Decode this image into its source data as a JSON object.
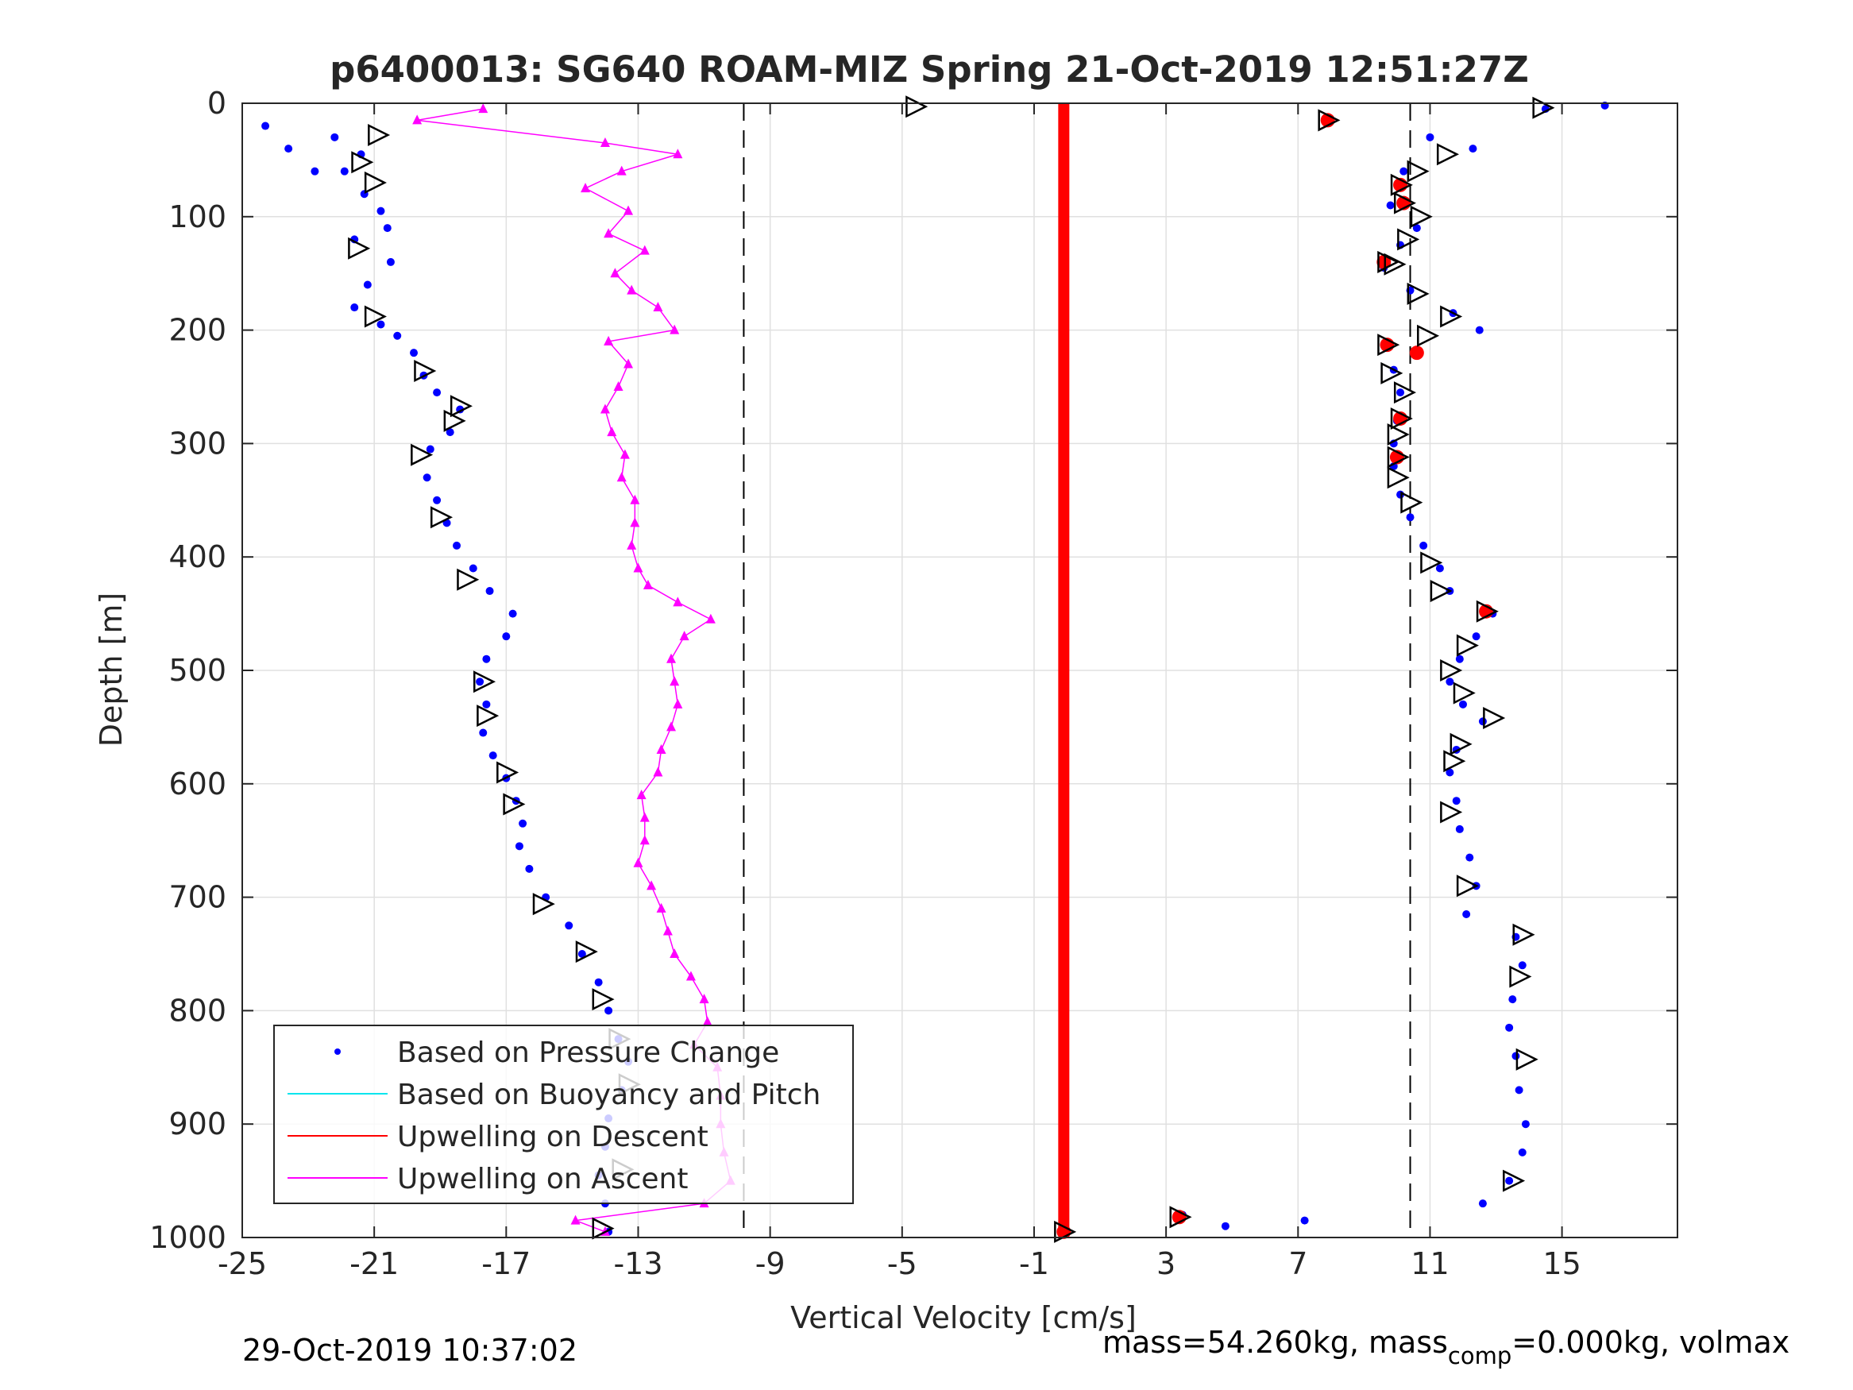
{
  "chart_data": {
    "type": "scatter",
    "title": "p6400013: SG640 ROAM-MIZ Spring 21-Oct-2019 12:51:27Z",
    "xlabel": "Vertical Velocity [cm/s]",
    "ylabel": "Depth [m]",
    "xlim": [
      -25,
      18.5
    ],
    "ylim": [
      1000,
      0
    ],
    "y_reversed": true,
    "xticks": [
      -25,
      -21,
      -17,
      -13,
      -9,
      -5,
      -1,
      3,
      7,
      11,
      15
    ],
    "xtick_labels": [
      "-25",
      "-21",
      "-17",
      "-13",
      "-9",
      "-5",
      "-1",
      "3",
      "7",
      "11",
      "15"
    ],
    "yticks": [
      0,
      100,
      200,
      300,
      400,
      500,
      600,
      700,
      800,
      900,
      1000
    ],
    "ytick_labels": [
      "0",
      "100",
      "200",
      "300",
      "400",
      "500",
      "600",
      "700",
      "800",
      "900",
      "1000"
    ],
    "grid": true,
    "legend_position": "bottom-left",
    "dashed_reference_lines_x": [
      -9.8,
      10.4
    ],
    "colors": {
      "pressure": "#0000ff",
      "buoyancy": "#00e5ee",
      "descent": "#ff0000",
      "ascent": "#ff00ff",
      "grid": "#e0e0e0",
      "axes": "#262626"
    },
    "legend": [
      {
        "label": "Based on Pressure Change",
        "style": "dot",
        "color": "#0000ff"
      },
      {
        "label": "Based on Buoyancy and Pitch",
        "style": "line",
        "color": "#00e5ee"
      },
      {
        "label": "Upwelling on Descent",
        "style": "line",
        "color": "#ff0000"
      },
      {
        "label": "Upwelling on Ascent",
        "style": "line",
        "color": "#ff00ff"
      }
    ],
    "series": [
      {
        "name": "Based on Pressure Change (dive)",
        "color": "#0000ff",
        "points": [
          [
            -24.3,
            20
          ],
          [
            -23.6,
            40
          ],
          [
            -22.8,
            60
          ],
          [
            -22.2,
            30
          ],
          [
            -21.4,
            45
          ],
          [
            -21.9,
            60
          ],
          [
            -21.3,
            80
          ],
          [
            -20.8,
            95
          ],
          [
            -20.6,
            110
          ],
          [
            -21.6,
            120
          ],
          [
            -20.5,
            140
          ],
          [
            -21.2,
            160
          ],
          [
            -21.6,
            180
          ],
          [
            -20.8,
            195
          ],
          [
            -20.3,
            205
          ],
          [
            -19.8,
            220
          ],
          [
            -19.5,
            240
          ],
          [
            -19.1,
            255
          ],
          [
            -18.4,
            270
          ],
          [
            -18.7,
            290
          ],
          [
            -19.3,
            305
          ],
          [
            -19.4,
            330
          ],
          [
            -19.1,
            350
          ],
          [
            -18.8,
            370
          ],
          [
            -18.5,
            390
          ],
          [
            -18.0,
            410
          ],
          [
            -17.5,
            430
          ],
          [
            -16.8,
            450
          ],
          [
            -17.0,
            470
          ],
          [
            -17.6,
            490
          ],
          [
            -17.8,
            510
          ],
          [
            -17.6,
            530
          ],
          [
            -17.7,
            555
          ],
          [
            -17.4,
            575
          ],
          [
            -17.0,
            595
          ],
          [
            -16.7,
            615
          ],
          [
            -16.5,
            635
          ],
          [
            -16.6,
            655
          ],
          [
            -16.3,
            675
          ],
          [
            -15.8,
            700
          ],
          [
            -15.1,
            725
          ],
          [
            -14.7,
            750
          ],
          [
            -14.2,
            775
          ],
          [
            -13.9,
            800
          ],
          [
            -13.6,
            825
          ],
          [
            -13.3,
            845
          ],
          [
            -13.5,
            870
          ],
          [
            -13.9,
            895
          ],
          [
            -14.0,
            920
          ],
          [
            -14.2,
            945
          ],
          [
            -14.0,
            970
          ],
          [
            -13.9,
            995
          ]
        ]
      },
      {
        "name": "Based on Pressure Change (climb)",
        "color": "#0000ff",
        "points": [
          [
            16.3,
            2
          ],
          [
            14.5,
            5
          ],
          [
            12.3,
            40
          ],
          [
            11.0,
            30
          ],
          [
            10.2,
            60
          ],
          [
            9.8,
            90
          ],
          [
            10.6,
            110
          ],
          [
            10.1,
            125
          ],
          [
            9.6,
            145
          ],
          [
            10.4,
            165
          ],
          [
            11.7,
            185
          ],
          [
            12.5,
            200
          ],
          [
            9.7,
            215
          ],
          [
            9.9,
            235
          ],
          [
            10.1,
            255
          ],
          [
            10.0,
            280
          ],
          [
            9.9,
            300
          ],
          [
            9.9,
            320
          ],
          [
            10.1,
            345
          ],
          [
            10.4,
            365
          ],
          [
            10.8,
            390
          ],
          [
            11.3,
            410
          ],
          [
            11.6,
            430
          ],
          [
            12.9,
            450
          ],
          [
            12.4,
            470
          ],
          [
            11.9,
            490
          ],
          [
            11.6,
            510
          ],
          [
            12.0,
            530
          ],
          [
            12.6,
            545
          ],
          [
            11.8,
            570
          ],
          [
            11.6,
            590
          ],
          [
            11.8,
            615
          ],
          [
            11.9,
            640
          ],
          [
            12.2,
            665
          ],
          [
            12.4,
            690
          ],
          [
            12.1,
            715
          ],
          [
            13.6,
            735
          ],
          [
            13.8,
            760
          ],
          [
            13.5,
            790
          ],
          [
            13.4,
            815
          ],
          [
            13.6,
            840
          ],
          [
            13.7,
            870
          ],
          [
            13.9,
            900
          ],
          [
            13.8,
            925
          ],
          [
            13.4,
            950
          ],
          [
            12.6,
            970
          ],
          [
            3.5,
            980
          ],
          [
            4.8,
            990
          ],
          [
            7.2,
            985
          ]
        ]
      },
      {
        "name": "Upwelling on Descent",
        "color": "#ff0000",
        "points": [
          [
            -0.1,
            0
          ],
          [
            -0.1,
            100
          ],
          [
            -0.1,
            200
          ],
          [
            -0.1,
            300
          ],
          [
            -0.1,
            400
          ],
          [
            -0.1,
            500
          ],
          [
            -0.1,
            600
          ],
          [
            -0.1,
            700
          ],
          [
            -0.1,
            800
          ],
          [
            -0.1,
            900
          ],
          [
            -0.1,
            995
          ]
        ]
      },
      {
        "name": "Upwelling on Ascent",
        "color": "#ff00ff",
        "points": [
          [
            -17.7,
            5
          ],
          [
            -19.7,
            15
          ],
          [
            -14.0,
            35
          ],
          [
            -11.8,
            45
          ],
          [
            -13.5,
            60
          ],
          [
            -14.6,
            75
          ],
          [
            -13.3,
            95
          ],
          [
            -13.9,
            115
          ],
          [
            -12.8,
            130
          ],
          [
            -13.7,
            150
          ],
          [
            -13.2,
            165
          ],
          [
            -12.4,
            180
          ],
          [
            -11.9,
            200
          ],
          [
            -13.9,
            210
          ],
          [
            -13.3,
            230
          ],
          [
            -13.6,
            250
          ],
          [
            -14.0,
            270
          ],
          [
            -13.8,
            290
          ],
          [
            -13.4,
            310
          ],
          [
            -13.5,
            330
          ],
          [
            -13.1,
            350
          ],
          [
            -13.1,
            370
          ],
          [
            -13.2,
            390
          ],
          [
            -13.0,
            410
          ],
          [
            -12.7,
            425
          ],
          [
            -11.8,
            440
          ],
          [
            -10.8,
            455
          ],
          [
            -11.6,
            470
          ],
          [
            -12.0,
            490
          ],
          [
            -11.9,
            510
          ],
          [
            -11.8,
            530
          ],
          [
            -12.0,
            550
          ],
          [
            -12.3,
            570
          ],
          [
            -12.4,
            590
          ],
          [
            -12.9,
            610
          ],
          [
            -12.8,
            630
          ],
          [
            -12.8,
            650
          ],
          [
            -13.0,
            670
          ],
          [
            -12.6,
            690
          ],
          [
            -12.3,
            710
          ],
          [
            -12.1,
            730
          ],
          [
            -11.9,
            750
          ],
          [
            -11.4,
            770
          ],
          [
            -11.0,
            790
          ],
          [
            -10.9,
            810
          ],
          [
            -11.3,
            830
          ],
          [
            -10.6,
            850
          ],
          [
            -10.5,
            875
          ],
          [
            -10.5,
            900
          ],
          [
            -10.4,
            925
          ],
          [
            -10.2,
            950
          ],
          [
            -11.0,
            970
          ],
          [
            -14.9,
            985
          ],
          [
            -14.0,
            995
          ]
        ]
      }
    ],
    "triangle_markers": [
      {
        "x": -20.9,
        "y": 28
      },
      {
        "x": -21.4,
        "y": 52
      },
      {
        "x": -21.0,
        "y": 70
      },
      {
        "x": -21.5,
        "y": 128
      },
      {
        "x": -21.0,
        "y": 188
      },
      {
        "x": -19.5,
        "y": 236
      },
      {
        "x": -18.4,
        "y": 267
      },
      {
        "x": -18.6,
        "y": 280
      },
      {
        "x": -19.6,
        "y": 310
      },
      {
        "x": -19.0,
        "y": 365
      },
      {
        "x": -18.2,
        "y": 420
      },
      {
        "x": -17.7,
        "y": 510
      },
      {
        "x": -17.6,
        "y": 540
      },
      {
        "x": -17.0,
        "y": 590
      },
      {
        "x": -16.8,
        "y": 618
      },
      {
        "x": -15.9,
        "y": 706
      },
      {
        "x": -14.6,
        "y": 748
      },
      {
        "x": -14.1,
        "y": 790
      },
      {
        "x": -13.6,
        "y": 825
      },
      {
        "x": -13.3,
        "y": 865
      },
      {
        "x": -13.5,
        "y": 940
      },
      {
        "x": -14.1,
        "y": 992
      },
      {
        "x": -4.6,
        "y": 3
      },
      {
        "x": 14.4,
        "y": 4
      },
      {
        "x": 7.9,
        "y": 15
      },
      {
        "x": 11.5,
        "y": 45
      },
      {
        "x": 10.6,
        "y": 60
      },
      {
        "x": 10.1,
        "y": 72
      },
      {
        "x": 10.2,
        "y": 88
      },
      {
        "x": 10.7,
        "y": 100
      },
      {
        "x": 10.3,
        "y": 120
      },
      {
        "x": 9.7,
        "y": 140
      },
      {
        "x": 9.9,
        "y": 142
      },
      {
        "x": 10.6,
        "y": 168
      },
      {
        "x": 11.6,
        "y": 188
      },
      {
        "x": 10.9,
        "y": 205
      },
      {
        "x": 9.7,
        "y": 213
      },
      {
        "x": 9.8,
        "y": 238
      },
      {
        "x": 10.2,
        "y": 255
      },
      {
        "x": 10.1,
        "y": 278
      },
      {
        "x": 10.0,
        "y": 292
      },
      {
        "x": 10.0,
        "y": 312
      },
      {
        "x": 10.0,
        "y": 330
      },
      {
        "x": 10.4,
        "y": 352
      },
      {
        "x": 11.0,
        "y": 405
      },
      {
        "x": 11.3,
        "y": 430
      },
      {
        "x": 12.7,
        "y": 448
      },
      {
        "x": 12.1,
        "y": 478
      },
      {
        "x": 11.6,
        "y": 500
      },
      {
        "x": 12.0,
        "y": 520
      },
      {
        "x": 12.9,
        "y": 542
      },
      {
        "x": 11.9,
        "y": 565
      },
      {
        "x": 11.7,
        "y": 580
      },
      {
        "x": 11.6,
        "y": 625
      },
      {
        "x": 12.1,
        "y": 690
      },
      {
        "x": 13.8,
        "y": 733
      },
      {
        "x": 13.7,
        "y": 770
      },
      {
        "x": 13.9,
        "y": 843
      },
      {
        "x": 13.5,
        "y": 950
      },
      {
        "x": 3.4,
        "y": 982
      },
      {
        "x": -0.1,
        "y": 995
      }
    ],
    "red_marker_points": [
      {
        "x": 7.9,
        "y": 15
      },
      {
        "x": 10.1,
        "y": 72
      },
      {
        "x": 10.2,
        "y": 88
      },
      {
        "x": 9.6,
        "y": 140
      },
      {
        "x": 9.7,
        "y": 213
      },
      {
        "x": 10.6,
        "y": 220
      },
      {
        "x": 10.1,
        "y": 278
      },
      {
        "x": 10.0,
        "y": 312
      },
      {
        "x": 12.7,
        "y": 448
      },
      {
        "x": 3.4,
        "y": 982
      },
      {
        "x": -0.1,
        "y": 995
      }
    ]
  },
  "footer": {
    "timestamp": "29-Oct-2019 10:37:02",
    "mass_text": "mass=54.260kg, mass",
    "comp_subscript": "comp",
    "mass_comp_text": "=0.000kg, volmax"
  }
}
